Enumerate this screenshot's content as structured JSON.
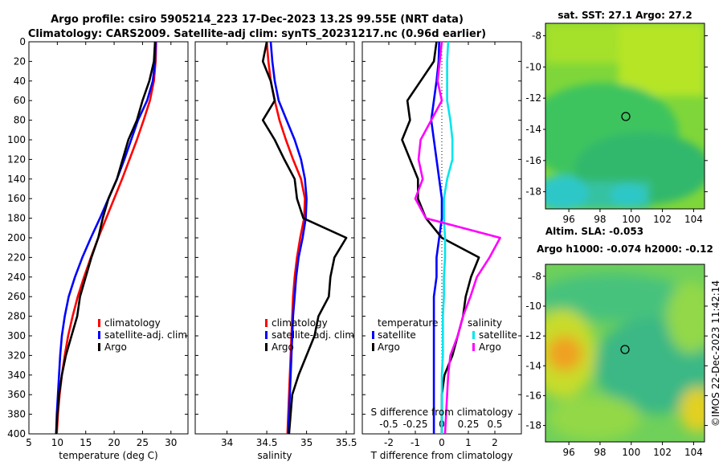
{
  "title_line1": "Argo profile: csiro 5905214_223 17-Dec-2023 13.2S 99.55E (NRT data)",
  "title_line2": "Climatology: CARS2009. Satellite-adj clim: synTS_20231217.nc (0.96d earlier)",
  "copyright": "©IMOS 22-Dec-2023 11:42:14",
  "colors": {
    "climatology": "#ff0000",
    "satellite": "#0000ff",
    "argo": "#000000",
    "sat_diff": "#00e5ee",
    "argo_diff": "#ff00ff"
  },
  "chart_data": [
    {
      "type": "line",
      "panel": "temperature",
      "xlabel": "temperature (deg C)",
      "ylabel": "",
      "xlim": [
        5,
        33
      ],
      "ylim": [
        400,
        0
      ],
      "xticks": [
        "5",
        "10",
        "15",
        "20",
        "25",
        "30"
      ],
      "yticks": [
        "0",
        "20",
        "40",
        "60",
        "80",
        "100",
        "120",
        "140",
        "160",
        "180",
        "200",
        "220",
        "240",
        "260",
        "280",
        "300",
        "320",
        "340",
        "360",
        "380",
        "400"
      ],
      "legend": [
        "climatology",
        "satellite-adj. clim",
        "Argo"
      ],
      "series": [
        {
          "name": "climatology",
          "x": [
            27.4,
            27.3,
            27.0,
            26.3,
            25.2,
            24.0,
            22.7,
            21.4,
            20.0,
            18.6,
            17.2,
            15.9,
            14.7,
            13.6,
            12.7,
            11.9,
            11.3,
            10.8,
            10.4,
            10.1,
            9.9
          ],
          "y": [
            0,
            20,
            40,
            60,
            80,
            100,
            120,
            140,
            160,
            180,
            200,
            220,
            240,
            260,
            280,
            300,
            320,
            340,
            360,
            380,
            400
          ]
        },
        {
          "name": "satellite-adj. clim",
          "x": [
            27.3,
            27.2,
            26.8,
            25.8,
            24.2,
            23.0,
            21.8,
            20.5,
            19.0,
            17.5,
            15.9,
            14.4,
            13.1,
            12.0,
            11.3,
            10.8,
            10.5,
            10.3,
            10.1,
            9.9,
            9.8
          ],
          "y": [
            0,
            20,
            40,
            60,
            80,
            100,
            120,
            140,
            160,
            180,
            200,
            220,
            240,
            260,
            280,
            300,
            320,
            340,
            360,
            380,
            400
          ]
        },
        {
          "name": "Argo",
          "x": [
            27.2,
            27.0,
            26.2,
            25.0,
            24.0,
            22.5,
            21.5,
            20.5,
            19.0,
            18.0,
            17.2,
            16.0,
            15.0,
            14.0,
            13.5,
            12.5,
            11.5,
            10.8,
            10.3,
            10.0,
            9.8
          ],
          "y": [
            0,
            20,
            40,
            60,
            80,
            100,
            120,
            140,
            160,
            180,
            200,
            220,
            240,
            260,
            280,
            300,
            320,
            340,
            360,
            380,
            400
          ]
        }
      ]
    },
    {
      "type": "line",
      "panel": "salinity",
      "xlabel": "salinity",
      "xlim": [
        33.6,
        35.6
      ],
      "ylim": [
        400,
        0
      ],
      "xticks": [
        "34",
        "34.5",
        "35",
        "35.5"
      ],
      "legend": [
        "climatology",
        "satellite-adj. clim",
        "Argo"
      ],
      "series": [
        {
          "name": "climatology",
          "x": [
            34.5,
            34.52,
            34.55,
            34.6,
            34.66,
            34.74,
            34.83,
            34.93,
            34.98,
            34.97,
            34.92,
            34.88,
            34.85,
            34.83,
            34.82,
            34.81,
            34.8,
            34.79,
            34.78,
            34.77,
            34.76
          ],
          "y": [
            0,
            20,
            40,
            60,
            80,
            100,
            120,
            140,
            160,
            180,
            200,
            220,
            240,
            260,
            280,
            300,
            320,
            340,
            360,
            380,
            400
          ]
        },
        {
          "name": "satellite-adj. clim",
          "x": [
            34.55,
            34.57,
            34.6,
            34.65,
            34.75,
            34.85,
            34.93,
            34.98,
            35.0,
            34.99,
            34.95,
            34.9,
            34.87,
            34.85,
            34.83,
            34.82,
            34.81,
            34.8,
            34.79,
            34.78,
            34.77
          ],
          "y": [
            0,
            20,
            40,
            60,
            80,
            100,
            120,
            140,
            160,
            180,
            200,
            220,
            240,
            260,
            280,
            300,
            320,
            340,
            360,
            380,
            400
          ]
        },
        {
          "name": "Argo",
          "x": [
            34.5,
            34.45,
            34.55,
            34.6,
            34.45,
            34.6,
            34.72,
            34.85,
            34.88,
            34.96,
            35.5,
            35.35,
            35.3,
            35.28,
            35.15,
            35.1,
            35.0,
            34.9,
            34.82,
            34.8,
            34.78
          ],
          "y": [
            0,
            20,
            40,
            60,
            80,
            100,
            120,
            140,
            160,
            180,
            200,
            220,
            240,
            260,
            280,
            300,
            320,
            340,
            360,
            380,
            400
          ]
        }
      ]
    },
    {
      "type": "line",
      "panel": "difference",
      "xlabel": "T difference from climatology",
      "top_label": "S difference from climatology",
      "xlim": [
        -3,
        3
      ],
      "ylim": [
        400,
        0
      ],
      "xticks": [
        "-2",
        "-1",
        "0",
        "1",
        "2"
      ],
      "top_ticks": [
        "-0.5",
        "-0.25",
        "0",
        "0.25",
        "0.5"
      ],
      "legend_temperature": {
        "title": "temperature",
        "items": [
          "satellite",
          "Argo"
        ]
      },
      "legend_salinity": {
        "title": "salinity",
        "items": [
          "satellite",
          "Argo"
        ]
      },
      "series": [
        {
          "name": "T satellite",
          "x": [
            -0.1,
            -0.12,
            -0.2,
            -0.3,
            -0.4,
            -0.3,
            -0.2,
            -0.1,
            0.0,
            0.0,
            -0.1,
            -0.2,
            -0.2,
            -0.3,
            -0.3,
            -0.3,
            -0.3,
            -0.3,
            -0.3,
            -0.3,
            -0.3
          ],
          "y": [
            0,
            20,
            40,
            60,
            80,
            100,
            120,
            140,
            160,
            180,
            200,
            220,
            240,
            260,
            280,
            300,
            320,
            340,
            360,
            380,
            400
          ]
        },
        {
          "name": "T Argo",
          "x": [
            -0.2,
            -0.3,
            -0.8,
            -1.3,
            -1.2,
            -1.5,
            -1.2,
            -0.9,
            -0.9,
            -0.6,
            0.0,
            1.4,
            1.1,
            0.9,
            0.8,
            0.6,
            0.4,
            0.1,
            0.0,
            0.0,
            0.0
          ],
          "y": [
            0,
            20,
            40,
            60,
            80,
            100,
            120,
            140,
            160,
            180,
            200,
            220,
            240,
            260,
            280,
            300,
            320,
            340,
            360,
            380,
            400
          ]
        },
        {
          "name": "S satellite",
          "x": [
            0.06,
            0.05,
            0.05,
            0.05,
            0.08,
            0.1,
            0.1,
            0.05,
            0.02,
            0.02,
            0.03,
            0.03,
            0.02,
            0.02,
            0.01,
            0.01,
            0.01,
            0.0,
            0.0,
            0.0,
            0.0
          ],
          "y": [
            0,
            20,
            40,
            60,
            80,
            100,
            120,
            140,
            160,
            180,
            200,
            220,
            240,
            260,
            280,
            300,
            320,
            340,
            360,
            380,
            400
          ]
        },
        {
          "name": "S Argo",
          "x": [
            0.0,
            -0.02,
            -0.04,
            0.0,
            -0.1,
            -0.2,
            -0.22,
            -0.18,
            -0.25,
            -0.15,
            0.55,
            0.45,
            0.33,
            0.27,
            0.2,
            0.15,
            0.08,
            0.06,
            0.05,
            0.04,
            0.03
          ],
          "y": [
            0,
            20,
            40,
            60,
            80,
            100,
            120,
            140,
            160,
            180,
            200,
            220,
            240,
            260,
            280,
            300,
            320,
            340,
            360,
            380,
            400
          ]
        }
      ]
    },
    {
      "type": "heatmap",
      "panel": "sst_map",
      "title": "sat. SST: 27.1 Argo: 27.2",
      "xlim": [
        94.5,
        104.7
      ],
      "ylim": [
        -19.1,
        -7.2
      ],
      "xticks": [
        "96",
        "98",
        "100",
        "102",
        "104"
      ],
      "yticks": [
        "-8",
        "-10",
        "-12",
        "-14",
        "-16",
        "-18"
      ],
      "argo_marker": {
        "lon": 99.55,
        "lat": -13.2
      }
    },
    {
      "type": "heatmap",
      "panel": "sla_map",
      "title_line1": "Altim. SLA: -0.053",
      "title_line2": "Argo h1000: -0.074 h2000: -0.12",
      "xlim": [
        94.5,
        104.7
      ],
      "ylim": [
        -19.1,
        -7.2
      ],
      "xticks": [
        "96",
        "98",
        "100",
        "102",
        "104"
      ],
      "yticks": [
        "-8",
        "-10",
        "-12",
        "-14",
        "-16",
        "-18"
      ],
      "argo_marker": {
        "lon": 99.55,
        "lat": -13.2
      }
    }
  ]
}
